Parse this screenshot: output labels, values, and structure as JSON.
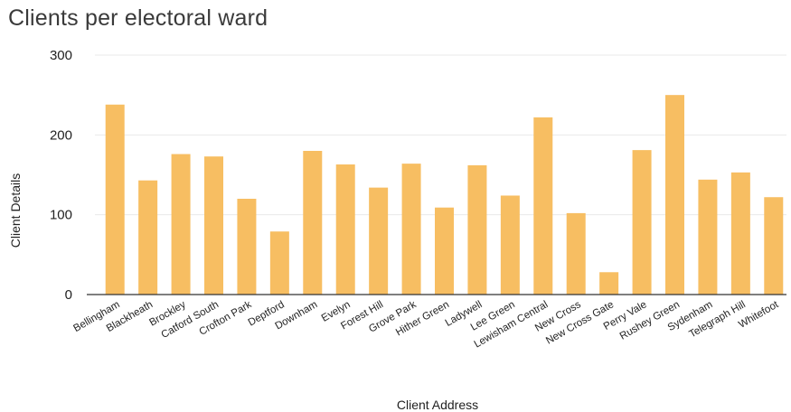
{
  "chart_data": {
    "type": "bar",
    "title": "Clients per electoral ward",
    "xlabel": "Client Address",
    "ylabel": "Client Details",
    "ylim": [
      0,
      300
    ],
    "yticks": [
      0,
      100,
      200,
      300
    ],
    "grid": true,
    "bar_color": "#F7BE62",
    "categories": [
      "Bellingham",
      "Blackheath",
      "Brockley",
      "Catford South",
      "Crofton Park",
      "Deptford",
      "Downham",
      "Evelyn",
      "Forest Hill",
      "Grove Park",
      "Hither Green",
      "Ladywell",
      "Lee Green",
      "Lewisham Central",
      "New Cross",
      "New Cross Gate",
      "Perry Vale",
      "Rushey Green",
      "Sydenham",
      "Telegraph Hill",
      "Whitefoot"
    ],
    "values": [
      238,
      143,
      176,
      173,
      120,
      79,
      180,
      163,
      134,
      164,
      109,
      162,
      124,
      222,
      102,
      28,
      181,
      250,
      144,
      153,
      122
    ]
  }
}
